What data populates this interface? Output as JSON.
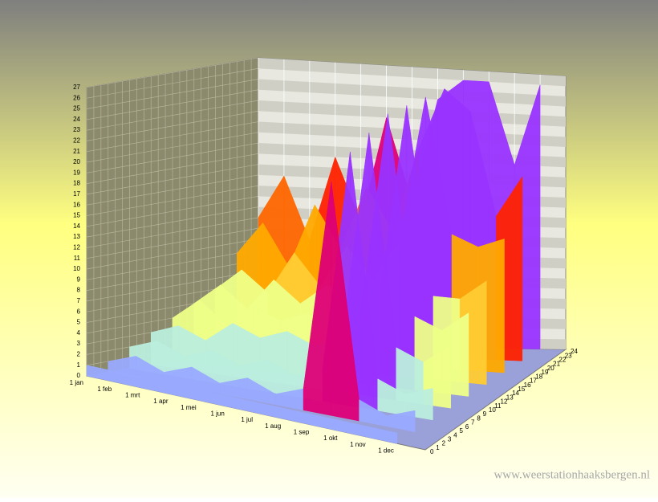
{
  "chart_data": {
    "type": "surface3d",
    "categories": [
      "1 jan",
      "1 feb",
      "1 mrt",
      "1 apr",
      "1 mei",
      "1 jun",
      "1 jul",
      "1 aug",
      "1 sep",
      "1 okt",
      "1 nov",
      "1 dec"
    ],
    "ylim": [
      0,
      27
    ],
    "yticks": [
      0,
      1,
      2,
      3,
      4,
      5,
      6,
      7,
      8,
      9,
      10,
      11,
      12,
      13,
      14,
      15,
      16,
      17,
      18,
      19,
      20,
      21,
      22,
      23,
      24,
      25,
      26,
      27
    ],
    "zlim": [
      0,
      24
    ],
    "zticks": [
      0,
      1,
      2,
      3,
      4,
      5,
      6,
      7,
      8,
      9,
      10,
      11,
      12,
      13,
      14,
      15,
      16,
      17,
      18,
      19,
      20,
      21,
      22,
      23,
      24
    ],
    "series": [
      {
        "z": 24,
        "values": [
          12,
          16,
          10,
          18,
          12,
          22,
          14,
          24,
          26,
          26,
          18,
          26
        ]
      },
      {
        "z": 21,
        "values": [
          9,
          12,
          8,
          14,
          10,
          16,
          12,
          20,
          26,
          24,
          14,
          18
        ]
      },
      {
        "z": 18,
        "values": [
          6,
          8,
          6,
          10,
          7,
          11,
          8,
          12,
          26,
          13,
          12,
          13
        ]
      },
      {
        "z": 15,
        "values": [
          5,
          7,
          5,
          8,
          6,
          8,
          7,
          8,
          26,
          8,
          8,
          10
        ]
      },
      {
        "z": 12,
        "values": [
          4,
          6,
          4,
          6,
          5,
          6,
          5,
          7,
          26,
          7,
          6,
          8
        ]
      },
      {
        "z": 9,
        "values": [
          3,
          4,
          3,
          5,
          4,
          5,
          4,
          5,
          25,
          5,
          4,
          6
        ]
      },
      {
        "z": 6,
        "values": [
          2,
          3,
          2,
          3,
          2,
          3,
          2,
          3,
          24,
          3,
          2,
          3
        ]
      },
      {
        "z": 3,
        "values": [
          1,
          2,
          1,
          2,
          1,
          2,
          1,
          2,
          22,
          2,
          1,
          2
        ]
      },
      {
        "z": 0,
        "values": [
          1,
          1,
          1,
          1,
          1,
          1,
          1,
          1,
          1,
          1,
          1,
          1
        ]
      }
    ],
    "colors": [
      "#99aaff",
      "#bbeedd",
      "#eeff88",
      "#ffcc33",
      "#ffaa00",
      "#ff6600",
      "#ff2200",
      "#dd0077",
      "#9933ff"
    ],
    "grid": true,
    "watermark": "www.weerstationhaaksbergen.nl"
  }
}
